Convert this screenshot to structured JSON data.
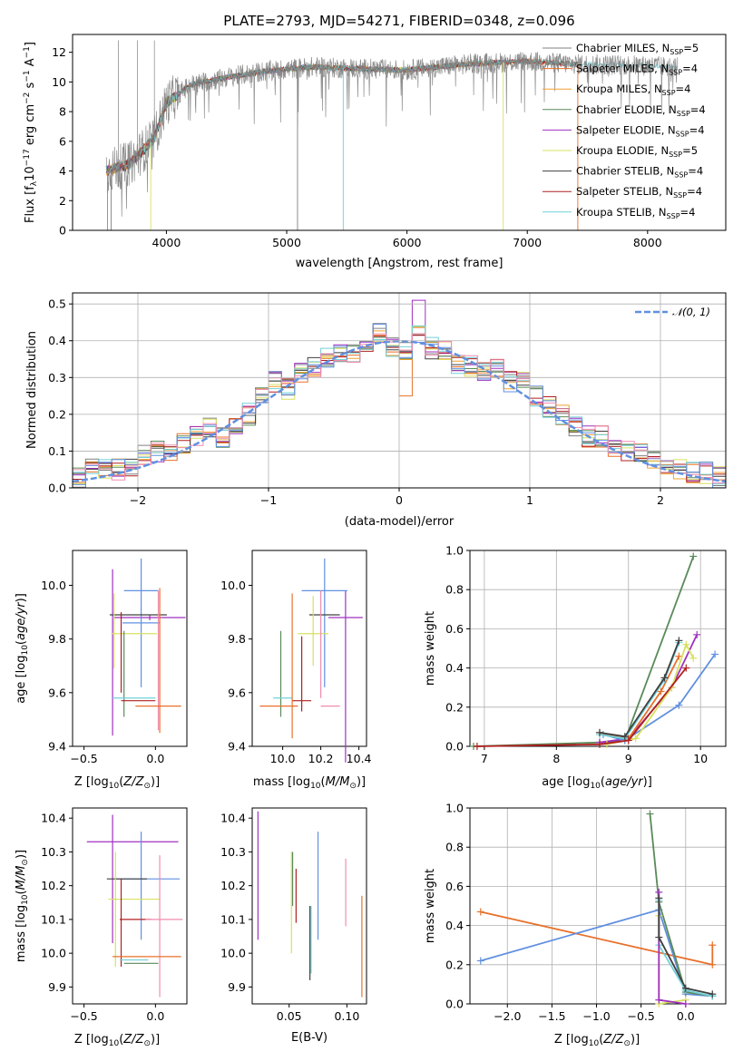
{
  "colors": {
    "chabrier_miles": "#808080",
    "salpeter_miles": "#e8702a",
    "kroupa_miles": "#f0a030",
    "chabrier_elodie": "#5a8a5a",
    "salpeter_elodie": "#a030c0",
    "kroupa_elodie": "#d8e060",
    "chabrier_stelib": "#404040",
    "salpeter_stelib": "#b02020",
    "kroupa_stelib": "#70d0d8",
    "blue": "#6090e0",
    "pink": "#f08cb0",
    "grid": "#b0b0b0"
  },
  "chart_data": [
    {
      "type": "line",
      "title": "PLATE=2793, MJD=54271, FIBERID=0348, z=0.096",
      "xlabel": "wavelength [Angstrom, rest frame]",
      "ylabel": "Flux [f_λ 10^-17 erg cm^-2 s^-1 A^-1]",
      "xlim": [
        3220,
        8650
      ],
      "ylim": [
        0,
        13.2
      ],
      "xticks": [
        "4000",
        "5000",
        "6000",
        "7000",
        "8000"
      ],
      "yticks": [
        "0",
        "2",
        "4",
        "6",
        "8",
        "10",
        "12"
      ],
      "grid": false,
      "legend_position": "right",
      "series": [
        {
          "name": "Chabrier MILES, N_SSP=5"
        },
        {
          "name": "Salpeter MILES, N_SSP=4"
        },
        {
          "name": "Kroupa MILES, N_SSP=4"
        },
        {
          "name": "Chabrier ELODIE, N_SSP=4"
        },
        {
          "name": "Salpeter ELODIE, N_SSP=4"
        },
        {
          "name": "Kroupa ELODIE, N_SSP=5"
        },
        {
          "name": "Chabrier STELIB, N_SSP=4"
        },
        {
          "name": "Salpeter STELIB, N_SSP=4"
        },
        {
          "name": "Kroupa STELIB, N_SSP=4"
        }
      ],
      "continuum": {
        "x": [
          3500,
          3700,
          3900,
          4000,
          4200,
          4500,
          4800,
          5200,
          5600,
          6000,
          6500,
          7000,
          7400,
          8000,
          8250
        ],
        "y": [
          4.0,
          4.5,
          6.2,
          8.6,
          9.8,
          10.3,
          10.7,
          11.0,
          10.9,
          10.8,
          11.2,
          11.4,
          11.2,
          11.1,
          11.0
        ]
      }
    },
    {
      "type": "line",
      "xlabel": "(data-model)/error",
      "ylabel": "Normed distribution",
      "xlim": [
        -2.5,
        2.5
      ],
      "ylim": [
        0,
        0.53
      ],
      "xticks": [
        "−2",
        "−1",
        "0",
        "1",
        "2"
      ],
      "yticks": [
        "0.0",
        "0.1",
        "0.2",
        "0.3",
        "0.4",
        "0.5"
      ],
      "grid": true,
      "legend_position": "top-right",
      "series": [
        {
          "name": "𝒩(0, 1)",
          "mu": 0,
          "sigma": 1
        },
        {
          "values": [
            0.03,
            0.05,
            0.05,
            0.05,
            0.06,
            0.09,
            0.1,
            0.1,
            0.12,
            0.14,
            0.16,
            0.14,
            0.16,
            0.2,
            0.25,
            0.29,
            0.27,
            0.31,
            0.33,
            0.35,
            0.37,
            0.36,
            0.38,
            0.42,
            0.38,
            0.37,
            0.42,
            0.38,
            0.37,
            0.34,
            0.33,
            0.31,
            0.32,
            0.29,
            0.3,
            0.25,
            0.22,
            0.2,
            0.17,
            0.14,
            0.14,
            0.11,
            0.1,
            0.09,
            0.08,
            0.06,
            0.05,
            0.04,
            0.04,
            0.03
          ]
        }
      ]
    },
    {
      "type": "scatter",
      "xlabel": "Z [log10(Z/Z⊙)]",
      "ylabel": "age  [log10(age/yr)]",
      "xlim": [
        -0.58,
        0.22
      ],
      "ylim": [
        9.4,
        10.13
      ],
      "xticks": [
        "−0.5",
        "0.0"
      ],
      "yticks": [
        "9.4",
        "9.6",
        "9.8",
        "10.0"
      ],
      "points": [
        {
          "x": -0.3,
          "xerr": 0.0,
          "y": 9.75,
          "yerr": 0.31,
          "c": "salpeter_elodie"
        },
        {
          "x": -0.04,
          "xerr": 0.25,
          "y": 9.88,
          "yerr": 0.01,
          "c": "salpeter_elodie"
        },
        {
          "x": -0.1,
          "xerr": 0.13,
          "y": 9.86,
          "yerr": 0.24,
          "c": "blue"
        },
        {
          "x": -0.1,
          "xerr": 0.12,
          "y": 9.98,
          "yerr": 0.0,
          "c": "blue"
        },
        {
          "x": -0.12,
          "xerr": 0.2,
          "y": 9.89,
          "yerr": 0.0,
          "c": "chabrier_stelib"
        },
        {
          "x": -0.15,
          "xerr": 0.16,
          "y": 9.82,
          "yerr": 0.0,
          "c": "kroupa_elodie"
        },
        {
          "x": -0.29,
          "xerr": 0.0,
          "y": 9.83,
          "yerr": 0.14,
          "c": "kroupa_elodie"
        },
        {
          "x": -0.24,
          "xerr": 0.0,
          "y": 9.75,
          "yerr": 0.15,
          "c": "salpeter_stelib"
        },
        {
          "x": 0.03,
          "xerr": 0.0,
          "y": 9.72,
          "yerr": 0.27,
          "c": "salpeter_miles"
        },
        {
          "x": 0.02,
          "xerr": 0.0,
          "y": 9.72,
          "yerr": 0.26,
          "c": "pink"
        },
        {
          "x": -0.22,
          "xerr": 0.0,
          "y": 9.67,
          "yerr": 0.16,
          "c": "chabrier_elodie"
        },
        {
          "x": -0.15,
          "xerr": 0.15,
          "y": 9.58,
          "yerr": 0.0,
          "c": "kroupa_stelib"
        },
        {
          "x": -0.12,
          "xerr": 0.12,
          "y": 9.57,
          "yerr": 0.0,
          "c": "salpeter_stelib"
        },
        {
          "x": 0.02,
          "xerr": 0.16,
          "y": 9.55,
          "yerr": 0.0,
          "c": "salpeter_miles"
        }
      ]
    },
    {
      "type": "scatter",
      "xlabel": "mass [log10(M/M⊙)]",
      "ylabel": "",
      "xlim": [
        9.84,
        10.44
      ],
      "ylim": [
        9.4,
        10.13
      ],
      "xticks": [
        "10.0",
        "10.2",
        "10.4"
      ],
      "yticks": [
        "9.4",
        "9.6",
        "9.8",
        "10.0"
      ],
      "points": [
        {
          "x": 10.33,
          "xerr": 0.09,
          "y": 9.88,
          "yerr": 0.0,
          "c": "salpeter_elodie"
        },
        {
          "x": 10.33,
          "xerr": 0.0,
          "y": 9.66,
          "yerr": 0.32,
          "c": "salpeter_elodie"
        },
        {
          "x": 10.22,
          "xerr": 0.0,
          "y": 9.86,
          "yerr": 0.24,
          "c": "blue"
        },
        {
          "x": 10.22,
          "xerr": 0.12,
          "y": 9.98,
          "yerr": 0.0,
          "c": "blue"
        },
        {
          "x": 10.22,
          "xerr": 0.08,
          "y": 9.89,
          "yerr": 0.0,
          "c": "chabrier_stelib"
        },
        {
          "x": 10.16,
          "xerr": 0.08,
          "y": 9.82,
          "yerr": 0.0,
          "c": "kroupa_elodie"
        },
        {
          "x": 10.16,
          "xerr": 0.0,
          "y": 9.83,
          "yerr": 0.13,
          "c": "kroupa_elodie"
        },
        {
          "x": 10.1,
          "xerr": 0.05,
          "y": 9.57,
          "yerr": 0.0,
          "c": "salpeter_stelib"
        },
        {
          "x": 10.1,
          "xerr": 0.0,
          "y": 9.67,
          "yerr": 0.14,
          "c": "salpeter_stelib"
        },
        {
          "x": 9.99,
          "xerr": 0.0,
          "y": 9.67,
          "yerr": 0.16,
          "c": "chabrier_elodie"
        },
        {
          "x": 10.0,
          "xerr": 0.05,
          "y": 9.58,
          "yerr": 0.0,
          "c": "kroupa_stelib"
        },
        {
          "x": 10.05,
          "xerr": 0.0,
          "y": 9.7,
          "yerr": 0.27,
          "c": "salpeter_miles"
        },
        {
          "x": 9.98,
          "xerr": 0.1,
          "y": 9.55,
          "yerr": 0.0,
          "c": "salpeter_miles"
        },
        {
          "x": 10.25,
          "xerr": 0.05,
          "y": 9.55,
          "yerr": 0.0,
          "c": "pink"
        },
        {
          "x": 10.2,
          "xerr": 0.0,
          "y": 9.78,
          "yerr": 0.2,
          "c": "pink"
        }
      ]
    },
    {
      "type": "line",
      "xlabel": "age  [log10(age/yr)]",
      "ylabel": "mass weight",
      "xlim": [
        6.8,
        10.35
      ],
      "ylim": [
        0,
        1.0
      ],
      "xticks": [
        "7",
        "8",
        "9",
        "10"
      ],
      "yticks": [
        "0.0",
        "0.2",
        "0.4",
        "0.6",
        "0.8",
        "1.0"
      ],
      "grid": true,
      "series": [
        {
          "c": "chabrier_elodie",
          "x": [
            6.85,
            8.6,
            8.95,
            9.9
          ],
          "y": [
            0.0,
            0.02,
            0.03,
            0.97
          ]
        },
        {
          "c": "salpeter_elodie",
          "x": [
            8.6,
            9.0,
            9.6,
            9.95
          ],
          "y": [
            0.02,
            0.04,
            0.3,
            0.57
          ]
        },
        {
          "c": "blue",
          "x": [
            8.65,
            8.95,
            9.7,
            10.2
          ],
          "y": [
            0.06,
            0.03,
            0.21,
            0.47
          ]
        },
        {
          "c": "salpeter_miles",
          "x": [
            8.6,
            9.0,
            9.45,
            9.7
          ],
          "y": [
            0.07,
            0.04,
            0.28,
            0.46
          ]
        },
        {
          "c": "kroupa_elodie",
          "x": [
            8.7,
            9.1,
            9.6,
            9.8,
            9.9
          ],
          "y": [
            0.01,
            0.04,
            0.3,
            0.52,
            0.45
          ]
        },
        {
          "c": "kroupa_stelib",
          "x": [
            8.6,
            8.95,
            9.5,
            9.7
          ],
          "y": [
            0.06,
            0.04,
            0.34,
            0.53
          ]
        },
        {
          "c": "chabrier_stelib",
          "x": [
            8.6,
            8.95,
            9.5,
            9.7
          ],
          "y": [
            0.07,
            0.05,
            0.35,
            0.54
          ]
        },
        {
          "c": "salpeter_stelib",
          "x": [
            6.9,
            8.6,
            9.0,
            9.8
          ],
          "y": [
            0.0,
            0.01,
            0.03,
            0.4
          ]
        }
      ]
    },
    {
      "type": "scatter",
      "xlabel": "Z [log10(Z/Z⊙)]",
      "ylabel": "mass [log10(M/M⊙)]",
      "xlim": [
        -0.58,
        0.22
      ],
      "ylim": [
        9.85,
        10.43
      ],
      "xticks": [
        "−0.5",
        "0.0"
      ],
      "yticks": [
        "9.9",
        "10.0",
        "10.1",
        "10.2",
        "10.3",
        "10.4"
      ],
      "points": [
        {
          "x": -0.3,
          "xerr": 0.0,
          "y": 10.22,
          "yerr": 0.19,
          "c": "salpeter_elodie"
        },
        {
          "x": -0.16,
          "xerr": 0.32,
          "y": 10.33,
          "yerr": 0.0,
          "c": "salpeter_elodie"
        },
        {
          "x": -0.1,
          "xerr": 0.0,
          "y": 10.2,
          "yerr": 0.16,
          "c": "blue"
        },
        {
          "x": -0.06,
          "xerr": 0.23,
          "y": 10.22,
          "yerr": 0.0,
          "c": "blue"
        },
        {
          "x": -0.2,
          "xerr": 0.14,
          "y": 10.22,
          "yerr": 0.0,
          "c": "chabrier_stelib"
        },
        {
          "x": -0.28,
          "xerr": 0.0,
          "y": 10.13,
          "yerr": 0.17,
          "c": "kroupa_elodie"
        },
        {
          "x": -0.15,
          "xerr": 0.18,
          "y": 10.16,
          "yerr": 0.0,
          "c": "kroupa_elodie"
        },
        {
          "x": -0.24,
          "xerr": 0.0,
          "y": 10.09,
          "yerr": 0.13,
          "c": "salpeter_stelib"
        },
        {
          "x": -0.14,
          "xerr": 0.11,
          "y": 10.1,
          "yerr": 0.0,
          "c": "salpeter_stelib"
        },
        {
          "x": 0.03,
          "xerr": 0.0,
          "y": 10.08,
          "yerr": 0.21,
          "c": "pink"
        },
        {
          "x": 0.06,
          "xerr": 0.13,
          "y": 10.1,
          "yerr": 0.0,
          "c": "pink"
        },
        {
          "x": -0.1,
          "xerr": 0.12,
          "y": 9.97,
          "yerr": 0.0,
          "c": "chabrier_elodie"
        },
        {
          "x": -0.06,
          "xerr": 0.24,
          "y": 9.99,
          "yerr": 0.0,
          "c": "salpeter_miles"
        },
        {
          "x": -0.15,
          "xerr": 0.1,
          "y": 9.98,
          "yerr": 0.0,
          "c": "kroupa_stelib"
        }
      ]
    },
    {
      "type": "scatter",
      "xlabel": "E(B-V)",
      "ylabel": "",
      "xlim": [
        0.018,
        0.117
      ],
      "ylim": [
        9.85,
        10.43
      ],
      "xticks": [
        "0.05",
        "0.10"
      ],
      "yticks": [
        "9.9",
        "10.0",
        "10.1",
        "10.2",
        "10.3",
        "10.4"
      ],
      "points": [
        {
          "x": 0.023,
          "yerr": 0.19,
          "y": 10.23,
          "c": "salpeter_elodie"
        },
        {
          "x": 0.052,
          "yerr": 0.15,
          "y": 10.15,
          "c": "kroupa_elodie"
        },
        {
          "x": 0.053,
          "yerr": 0.08,
          "y": 10.22,
          "c": "chabrier_elodie"
        },
        {
          "x": 0.056,
          "yerr": 0.08,
          "y": 10.17,
          "c": "salpeter_stelib"
        },
        {
          "x": 0.069,
          "yerr": 0.1,
          "y": 10.04,
          "c": "kroupa_stelib"
        },
        {
          "x": 0.068,
          "yerr": 0.11,
          "y": 10.03,
          "c": "chabrier_stelib"
        },
        {
          "x": 0.075,
          "yerr": 0.16,
          "y": 10.2,
          "c": "blue"
        },
        {
          "x": 0.099,
          "yerr": 0.1,
          "y": 10.18,
          "c": "pink"
        },
        {
          "x": 0.113,
          "yerr": 0.15,
          "y": 10.02,
          "c": "salpeter_miles"
        }
      ]
    },
    {
      "type": "line",
      "xlabel": "Z [log10(Z/Z⊙)]",
      "ylabel": "mass weight",
      "xlim": [
        -2.42,
        0.45
      ],
      "ylim": [
        0,
        1.0
      ],
      "xticks": [
        "−2.0",
        "−1.5",
        "−1.0",
        "−0.5",
        "0.0"
      ],
      "yticks": [
        "0.0",
        "0.2",
        "0.4",
        "0.6",
        "0.8",
        "1.0"
      ],
      "grid": true,
      "series": [
        {
          "c": "salpeter_miles",
          "x": [
            -2.3,
            0.3,
            0.3
          ],
          "y": [
            0.47,
            0.2,
            0.3
          ]
        },
        {
          "c": "blue",
          "x": [
            -2.3,
            -0.3,
            0.0,
            0.3
          ],
          "y": [
            0.22,
            0.48,
            0.05,
            0.04
          ]
        },
        {
          "c": "chabrier_elodie",
          "x": [
            -0.4,
            -0.3,
            0.0,
            0.3
          ],
          "y": [
            0.97,
            0.52,
            0.06,
            0.04
          ]
        },
        {
          "c": "kroupa_stelib",
          "x": [
            -0.3,
            -0.3,
            0.0,
            0.3
          ],
          "y": [
            0.53,
            0.3,
            0.07,
            0.04
          ]
        },
        {
          "c": "kroupa_elodie",
          "x": [
            -0.3,
            -0.3,
            0.0
          ],
          "y": [
            0.45,
            0.0,
            0.02
          ]
        },
        {
          "c": "salpeter_elodie",
          "x": [
            -0.3,
            -0.3,
            0.0
          ],
          "y": [
            0.57,
            0.02,
            0.0
          ]
        },
        {
          "c": "chabrier_stelib",
          "x": [
            -0.3,
            -0.3,
            0.0,
            0.3
          ],
          "y": [
            0.54,
            0.34,
            0.08,
            0.05
          ]
        }
      ]
    }
  ]
}
